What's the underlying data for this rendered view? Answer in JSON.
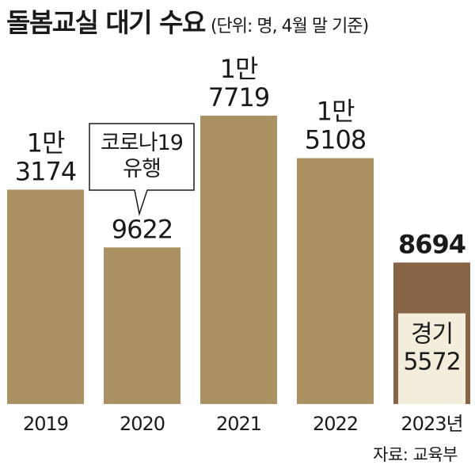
{
  "header": {
    "title": "돌봄교실 대기 수요",
    "unit": "(단위: 명, 4월 말 기준)"
  },
  "source": "자료: 교육부",
  "colors": {
    "bar": "#ab9062",
    "bar_2023": "#876445",
    "inset": "#f3eedb",
    "text": "#1a1a1a"
  },
  "chart_data": {
    "type": "bar",
    "categories": [
      "2019",
      "2020",
      "2021",
      "2022",
      "2023년"
    ],
    "values": [
      13174,
      9622,
      17719,
      15108,
      8694
    ],
    "value_labels": [
      [
        "1만",
        "3174"
      ],
      [
        "9622"
      ],
      [
        "1만",
        "7719"
      ],
      [
        "1만",
        "5108"
      ],
      [
        "8694"
      ]
    ],
    "inset": {
      "category": "2023년",
      "label": [
        "경기",
        "5572"
      ],
      "value": 5572
    },
    "annotation": {
      "category": "2020",
      "text": [
        "코로나19",
        "유행"
      ]
    },
    "ylim": [
      0,
      17719
    ],
    "grid": false
  }
}
